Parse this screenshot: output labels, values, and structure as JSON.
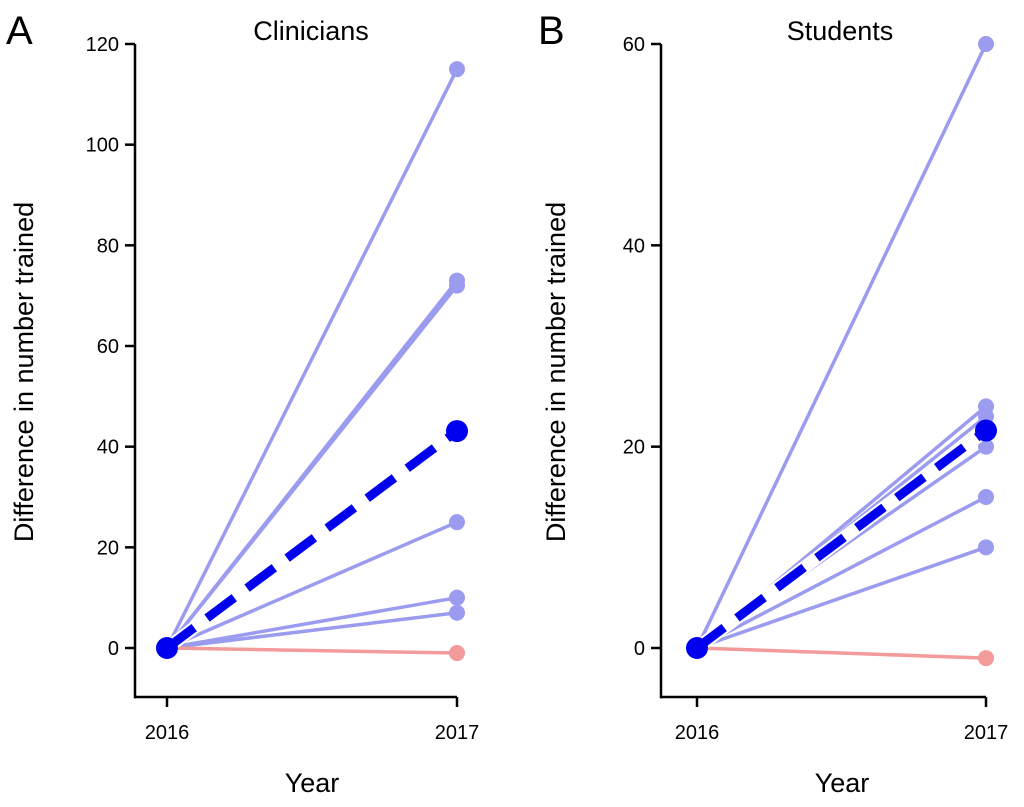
{
  "colors": {
    "increase": "#9b9bef",
    "decrease": "#f39a9a",
    "mean": "#0000ee",
    "axis": "#000000"
  },
  "chart_data": [
    {
      "type": "line",
      "panel_label": "A",
      "title": "Clinicians",
      "xlabel": "Year",
      "ylabel": "Difference in number trained",
      "categories": [
        "2016",
        "2017"
      ],
      "ylim": [
        -10,
        120
      ],
      "yticks": [
        "0",
        "20",
        "40",
        "60",
        "80",
        "100",
        "120"
      ],
      "grid": false,
      "series": [
        {
          "values": [
            0,
            115
          ],
          "style": "increase"
        },
        {
          "values": [
            0,
            73
          ],
          "style": "increase"
        },
        {
          "values": [
            0,
            72
          ],
          "style": "increase"
        },
        {
          "values": [
            0,
            25
          ],
          "style": "increase"
        },
        {
          "values": [
            0,
            10
          ],
          "style": "increase"
        },
        {
          "values": [
            0,
            7
          ],
          "style": "increase"
        },
        {
          "values": [
            0,
            -1
          ],
          "style": "decrease"
        },
        {
          "values": [
            0,
            43.1
          ],
          "style": "mean"
        }
      ]
    },
    {
      "type": "line",
      "panel_label": "B",
      "title": "Students",
      "xlabel": "Year",
      "ylabel": "Difference in number trained",
      "categories": [
        "2016",
        "2017"
      ],
      "ylim": [
        -5,
        60
      ],
      "yticks": [
        "0",
        "20",
        "40",
        "60"
      ],
      "grid": false,
      "series": [
        {
          "values": [
            0,
            60
          ],
          "style": "increase"
        },
        {
          "values": [
            0,
            24
          ],
          "style": "increase"
        },
        {
          "values": [
            0,
            23
          ],
          "style": "increase"
        },
        {
          "values": [
            0,
            20
          ],
          "style": "increase"
        },
        {
          "values": [
            0,
            15
          ],
          "style": "increase"
        },
        {
          "values": [
            0,
            10
          ],
          "style": "increase"
        },
        {
          "values": [
            0,
            -1
          ],
          "style": "decrease"
        },
        {
          "values": [
            0,
            21.6
          ],
          "style": "mean"
        }
      ]
    }
  ]
}
